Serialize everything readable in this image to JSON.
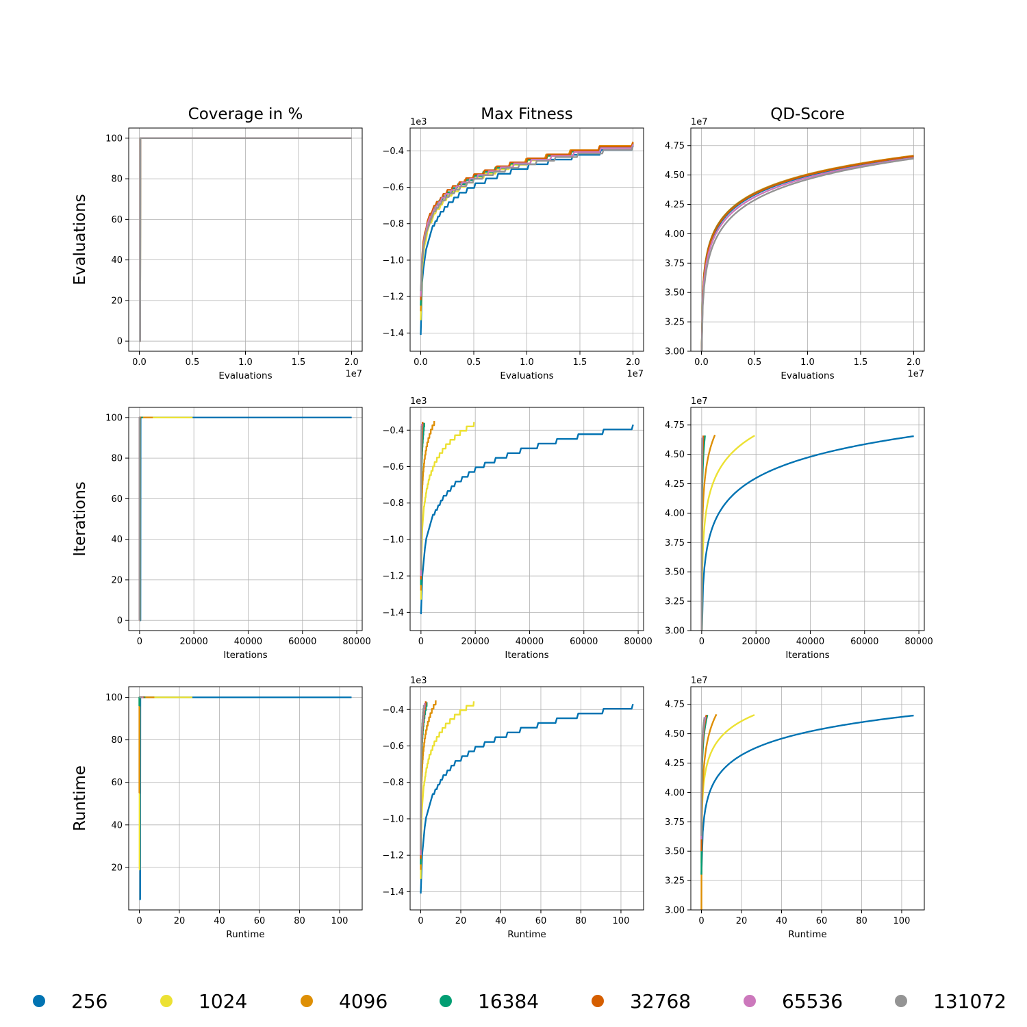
{
  "chart_data": {
    "type": "line",
    "grid": true,
    "legend_position": "bottom",
    "legend": [
      {
        "label": "256",
        "color": "#0173b2"
      },
      {
        "label": "1024",
        "color": "#ece133"
      },
      {
        "label": "4096",
        "color": "#de8f05"
      },
      {
        "label": "16384",
        "color": "#029e73"
      },
      {
        "label": "32768",
        "color": "#d55e00"
      },
      {
        "label": "65536",
        "color": "#cc78bc"
      },
      {
        "label": "131072",
        "color": "#949494"
      }
    ],
    "column_titles": [
      "Coverage in %",
      "Max Fitness",
      "QD-Score"
    ],
    "row_labels": [
      "Evaluations",
      "Iterations",
      "Runtime"
    ],
    "x_axes": [
      {
        "label": "Evaluations",
        "xlim": [
          -0.1,
          2.1
        ],
        "ticks": [
          0,
          0.5,
          1.0,
          1.5,
          2.0
        ],
        "tick_labels": [
          "0.0",
          "0.5",
          "1.0",
          "1.5",
          "2.0"
        ],
        "offset": "1e7"
      },
      {
        "label": "Iterations",
        "xlim": [
          -4000,
          82000
        ],
        "ticks": [
          0,
          20000,
          40000,
          60000,
          80000
        ],
        "tick_labels": [
          "0",
          "20000",
          "40000",
          "60000",
          "80000"
        ],
        "offset": ""
      },
      {
        "label": "Runtime",
        "xlim": [
          -5.3,
          111.3
        ],
        "ticks": [
          0,
          20,
          40,
          60,
          80,
          100
        ],
        "tick_labels": [
          "0",
          "20",
          "40",
          "60",
          "80",
          "100"
        ],
        "offset": ""
      }
    ],
    "y_axes": [
      [
        {
          "ylim": [
            -5,
            105
          ],
          "ticks": [
            0,
            20,
            40,
            60,
            80,
            100
          ],
          "tick_labels": [
            "0",
            "20",
            "40",
            "60",
            "80",
            "100"
          ],
          "offset": ""
        },
        {
          "ylim": [
            -1.5,
            -0.275
          ],
          "ticks": [
            -1.4,
            -1.2,
            -1.0,
            -0.8,
            -0.6,
            -0.4
          ],
          "tick_labels": [
            "−1.4",
            "−1.2",
            "−1.0",
            "−0.8",
            "−0.6",
            "−0.4"
          ],
          "offset": "1e3"
        },
        {
          "ylim": [
            3.0,
            4.9
          ],
          "ticks": [
            3.0,
            3.25,
            3.5,
            3.75,
            4.0,
            4.25,
            4.5,
            4.75
          ],
          "tick_labels": [
            "3.00",
            "3.25",
            "3.50",
            "3.75",
            "4.00",
            "4.25",
            "4.50",
            "4.75"
          ],
          "offset": "1e7"
        }
      ],
      [
        {
          "ylim": [
            -5,
            105
          ],
          "ticks": [
            0,
            20,
            40,
            60,
            80,
            100
          ],
          "tick_labels": [
            "0",
            "20",
            "40",
            "60",
            "80",
            "100"
          ],
          "offset": ""
        },
        {
          "ylim": [
            -1.5,
            -0.275
          ],
          "ticks": [
            -1.4,
            -1.2,
            -1.0,
            -0.8,
            -0.6,
            -0.4
          ],
          "tick_labels": [
            "−1.4",
            "−1.2",
            "−1.0",
            "−0.8",
            "−0.6",
            "−0.4"
          ],
          "offset": "1e3"
        },
        {
          "ylim": [
            3.0,
            4.9
          ],
          "ticks": [
            3.0,
            3.25,
            3.5,
            3.75,
            4.0,
            4.25,
            4.5,
            4.75
          ],
          "tick_labels": [
            "3.00",
            "3.25",
            "3.50",
            "3.75",
            "4.00",
            "4.25",
            "4.50",
            "4.75"
          ],
          "offset": "1e7"
        }
      ],
      [
        {
          "ylim": [
            0,
            105
          ],
          "ticks": [
            20,
            40,
            60,
            80,
            100
          ],
          "tick_labels": [
            "20",
            "40",
            "60",
            "80",
            "100"
          ],
          "offset": ""
        },
        {
          "ylim": [
            -1.5,
            -0.275
          ],
          "ticks": [
            -1.4,
            -1.2,
            -1.0,
            -0.8,
            -0.6,
            -0.4
          ],
          "tick_labels": [
            "−1.4",
            "−1.2",
            "−1.0",
            "−0.8",
            "−0.6",
            "−0.4"
          ],
          "offset": "1e3"
        },
        {
          "ylim": [
            3.0,
            4.9
          ],
          "ticks": [
            3.0,
            3.25,
            3.5,
            3.75,
            4.0,
            4.25,
            4.5,
            4.75
          ],
          "tick_labels": [
            "3.00",
            "3.25",
            "3.50",
            "3.75",
            "4.00",
            "4.25",
            "4.50",
            "4.75"
          ],
          "offset": "1e7"
        }
      ]
    ],
    "final_values": {
      "max_fitness": [
        -0.37,
        -0.355,
        -0.35,
        -0.36,
        -0.355,
        -0.365,
        -0.375
      ],
      "qd_score": [
        4.655,
        4.66,
        4.665,
        4.66,
        4.66,
        4.645,
        4.64
      ],
      "iterations_end": [
        78125,
        19531,
        4883,
        1221,
        610,
        305,
        153
      ],
      "runtime_end": [
        106,
        26.5,
        7.5,
        3.0,
        2.5,
        2.0,
        1.5
      ]
    }
  }
}
